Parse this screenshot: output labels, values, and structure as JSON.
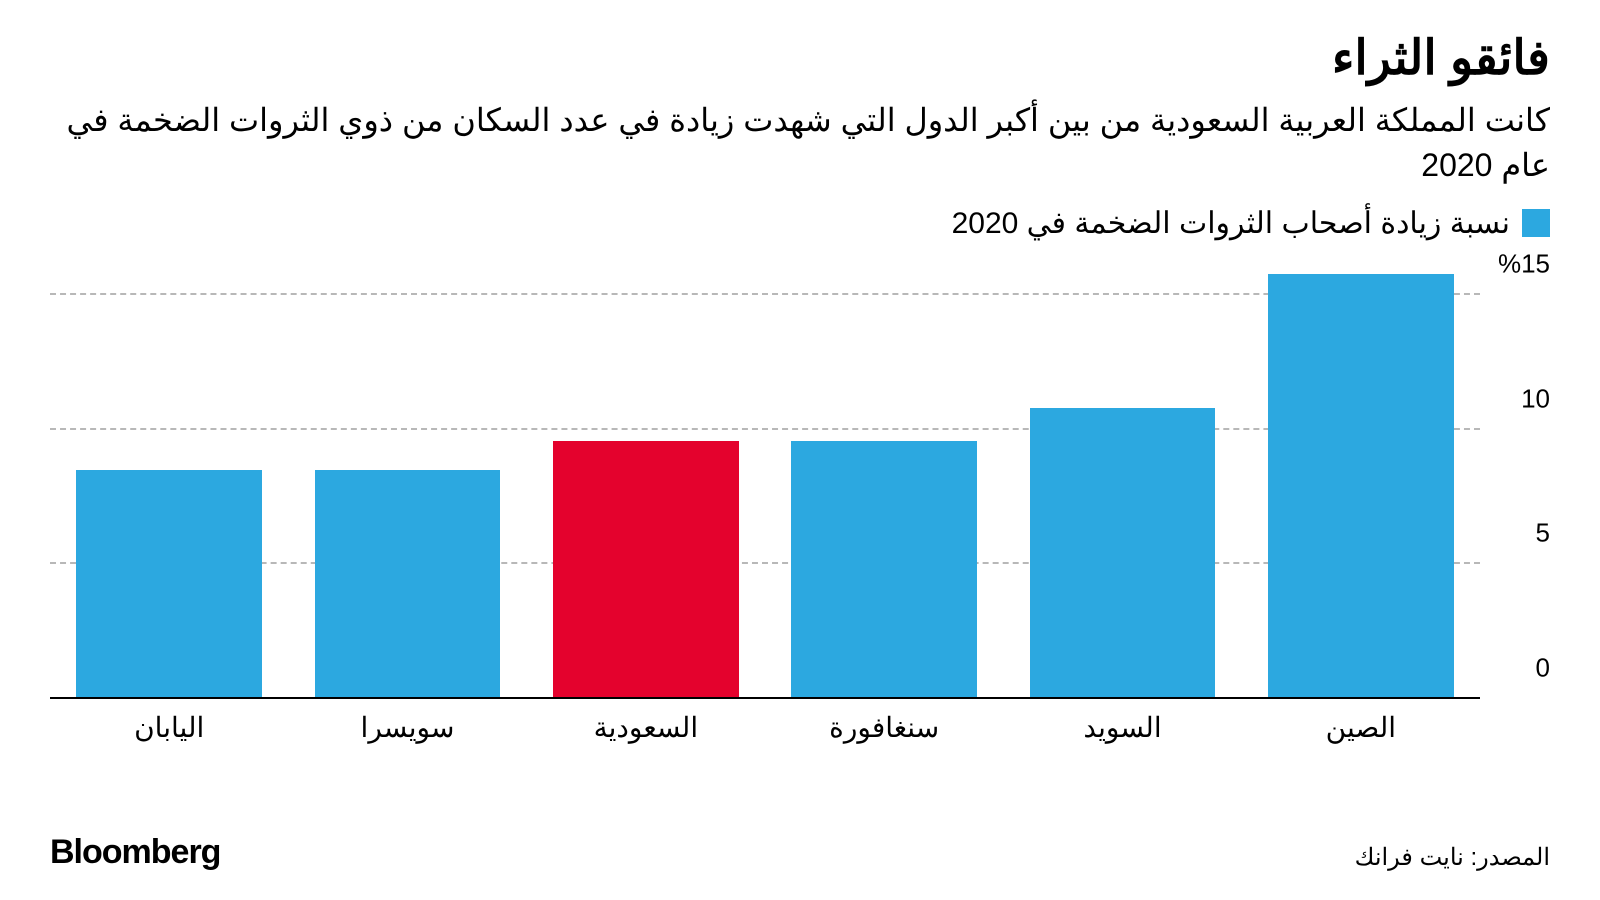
{
  "title": "فائقو الثراء",
  "subtitle": "كانت المملكة العربية السعودية من بين أكبر الدول التي شهدت زيادة في عدد السكان من ذوي الثروات الضخمة في عام 2020",
  "legend": {
    "label": "نسبة زيادة أصحاب الثروات الضخمة في 2020",
    "swatch_color": "#2ca8e0"
  },
  "chart": {
    "type": "bar",
    "ymin": 0,
    "ymax": 16,
    "yticks": [
      {
        "value": 0,
        "label": "0"
      },
      {
        "value": 5,
        "label": "5"
      },
      {
        "value": 10,
        "label": "10"
      },
      {
        "value": 15,
        "label": "%15"
      }
    ],
    "grid_color": "#b8b8b8",
    "baseline_color": "#000000",
    "background_color": "#ffffff",
    "bar_width_pct": 78,
    "categories": [
      "اليابان",
      "سويسرا",
      "السعودية",
      "سنغافورة",
      "السويد",
      "الصين"
    ],
    "values": [
      8.5,
      8.5,
      9.6,
      9.6,
      10.8,
      15.8
    ],
    "bar_colors": [
      "#2ca8e0",
      "#2ca8e0",
      "#e4022d",
      "#2ca8e0",
      "#2ca8e0",
      "#2ca8e0"
    ],
    "highlight_index": 2,
    "title_fontsize": 48,
    "subtitle_fontsize": 32,
    "axis_fontsize": 26
  },
  "source": "المصدر: نايت فرانك",
  "brand": "Bloomberg"
}
